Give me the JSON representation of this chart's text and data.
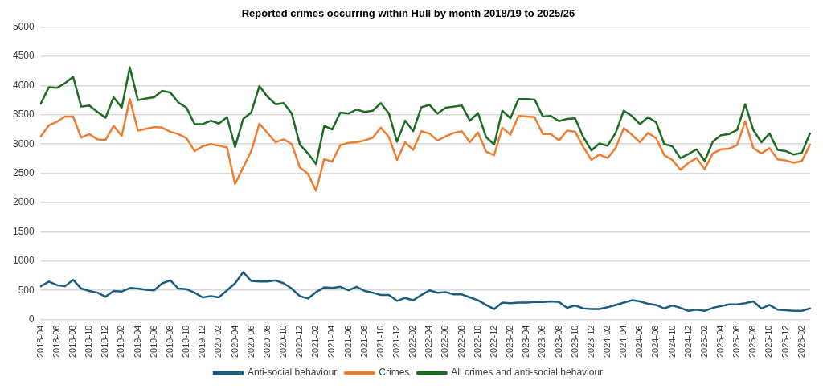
{
  "chart_data": {
    "type": "line",
    "title": "Reported crimes occurring within Hull by month 2018/19 to 2025/26",
    "categories": [
      "2018-04",
      null,
      "2018-06",
      null,
      "2018-08",
      null,
      "2018-10",
      null,
      "2018-12",
      null,
      "2019-02",
      null,
      "2019-04",
      null,
      "2019-06",
      null,
      "2019-08",
      null,
      "2019-10",
      null,
      "2019-12",
      null,
      "2020-02",
      null,
      "2020-04",
      null,
      "2020-06",
      null,
      "2020-08",
      null,
      "2020-10",
      null,
      "2020-12",
      null,
      "2021-02",
      null,
      "2021-04",
      null,
      "2021-06",
      null,
      "2021-08",
      null,
      "2021-10",
      null,
      "2021-12",
      null,
      "2022-02",
      null,
      "2022-04",
      null,
      "2022-06",
      null,
      "2022-08",
      null,
      "2022-10",
      null,
      "2022-12",
      null,
      "2023-02",
      null,
      "2023-04",
      null,
      "2023-06",
      null,
      "2023-08",
      null,
      "2023-10",
      null,
      "2023-12",
      null,
      "2024-02",
      null,
      "2024-04",
      null,
      "2024-06",
      null,
      "2024-08",
      null,
      "2024-10",
      null,
      "2024-12",
      null,
      "2025-02",
      null,
      "2025-04",
      null,
      "2025-06",
      null,
      "2025-08",
      null,
      "2025-10",
      null,
      "2025-12",
      null,
      "2026-02",
      null
    ],
    "series": [
      {
        "name": "Anti-social behaviour",
        "color": "#1b5e7e",
        "values": [
          570,
          650,
          590,
          570,
          680,
          530,
          490,
          460,
          390,
          490,
          480,
          540,
          530,
          510,
          500,
          620,
          670,
          530,
          520,
          460,
          380,
          400,
          380,
          500,
          620,
          810,
          660,
          650,
          650,
          670,
          620,
          530,
          400,
          360,
          470,
          550,
          540,
          560,
          500,
          560,
          490,
          460,
          420,
          420,
          320,
          370,
          330,
          420,
          500,
          460,
          470,
          430,
          430,
          380,
          330,
          250,
          180,
          290,
          280,
          290,
          290,
          300,
          300,
          310,
          300,
          200,
          240,
          190,
          180,
          180,
          210,
          250,
          290,
          330,
          310,
          270,
          250,
          190,
          240,
          200,
          150,
          170,
          150,
          200,
          230,
          260,
          260,
          280,
          310,
          190,
          250,
          170,
          160,
          150,
          150,
          190
        ]
      },
      {
        "name": "Crimes",
        "color": "#ed7d31",
        "values": [
          3130,
          3320,
          3380,
          3470,
          3470,
          3110,
          3170,
          3080,
          3070,
          3310,
          3140,
          3770,
          3230,
          3260,
          3290,
          3280,
          3210,
          3170,
          3100,
          2880,
          2960,
          3000,
          2970,
          2940,
          2320,
          2600,
          2880,
          3350,
          3190,
          3030,
          3080,
          3000,
          2600,
          2490,
          2200,
          2740,
          2700,
          2980,
          3020,
          3030,
          3060,
          3110,
          3280,
          3120,
          2730,
          3030,
          2900,
          3220,
          3180,
          3060,
          3130,
          3190,
          3220,
          3030,
          3200,
          2870,
          2810,
          3280,
          3160,
          3480,
          3470,
          3460,
          3170,
          3170,
          3060,
          3230,
          3210,
          2950,
          2730,
          2820,
          2760,
          2930,
          3270,
          3160,
          3030,
          3190,
          3100,
          2810,
          2730,
          2560,
          2680,
          2760,
          2570,
          2840,
          2910,
          2920,
          2980,
          3390,
          2930,
          2840,
          2930,
          2740,
          2720,
          2680,
          2710,
          2990
        ]
      },
      {
        "name": "All crimes and anti-social behaviour",
        "color": "#1e6b24",
        "values": [
          3690,
          3970,
          3960,
          4040,
          4150,
          3640,
          3660,
          3550,
          3450,
          3800,
          3620,
          4310,
          3750,
          3780,
          3800,
          3910,
          3880,
          3710,
          3620,
          3340,
          3340,
          3400,
          3350,
          3460,
          2950,
          3430,
          3540,
          3990,
          3810,
          3680,
          3700,
          3520,
          2990,
          2840,
          2660,
          3310,
          3250,
          3540,
          3520,
          3590,
          3550,
          3570,
          3700,
          3520,
          3040,
          3400,
          3220,
          3630,
          3670,
          3520,
          3620,
          3640,
          3660,
          3400,
          3530,
          3120,
          2990,
          3570,
          3440,
          3770,
          3770,
          3760,
          3470,
          3480,
          3390,
          3430,
          3440,
          3120,
          2890,
          3010,
          2970,
          3190,
          3570,
          3480,
          3340,
          3460,
          3370,
          3000,
          2960,
          2760,
          2830,
          2910,
          2710,
          3040,
          3150,
          3170,
          3240,
          3680,
          3240,
          3030,
          3180,
          2900,
          2880,
          2820,
          2850,
          3180
        ]
      }
    ],
    "ylim": [
      0,
      5000
    ],
    "yticks": [
      0,
      500,
      1000,
      1500,
      2000,
      2500,
      3000,
      3500,
      4000,
      4500,
      5000
    ],
    "grid": "y",
    "legend": "bottom",
    "marker": "none",
    "line_style": "solid"
  }
}
